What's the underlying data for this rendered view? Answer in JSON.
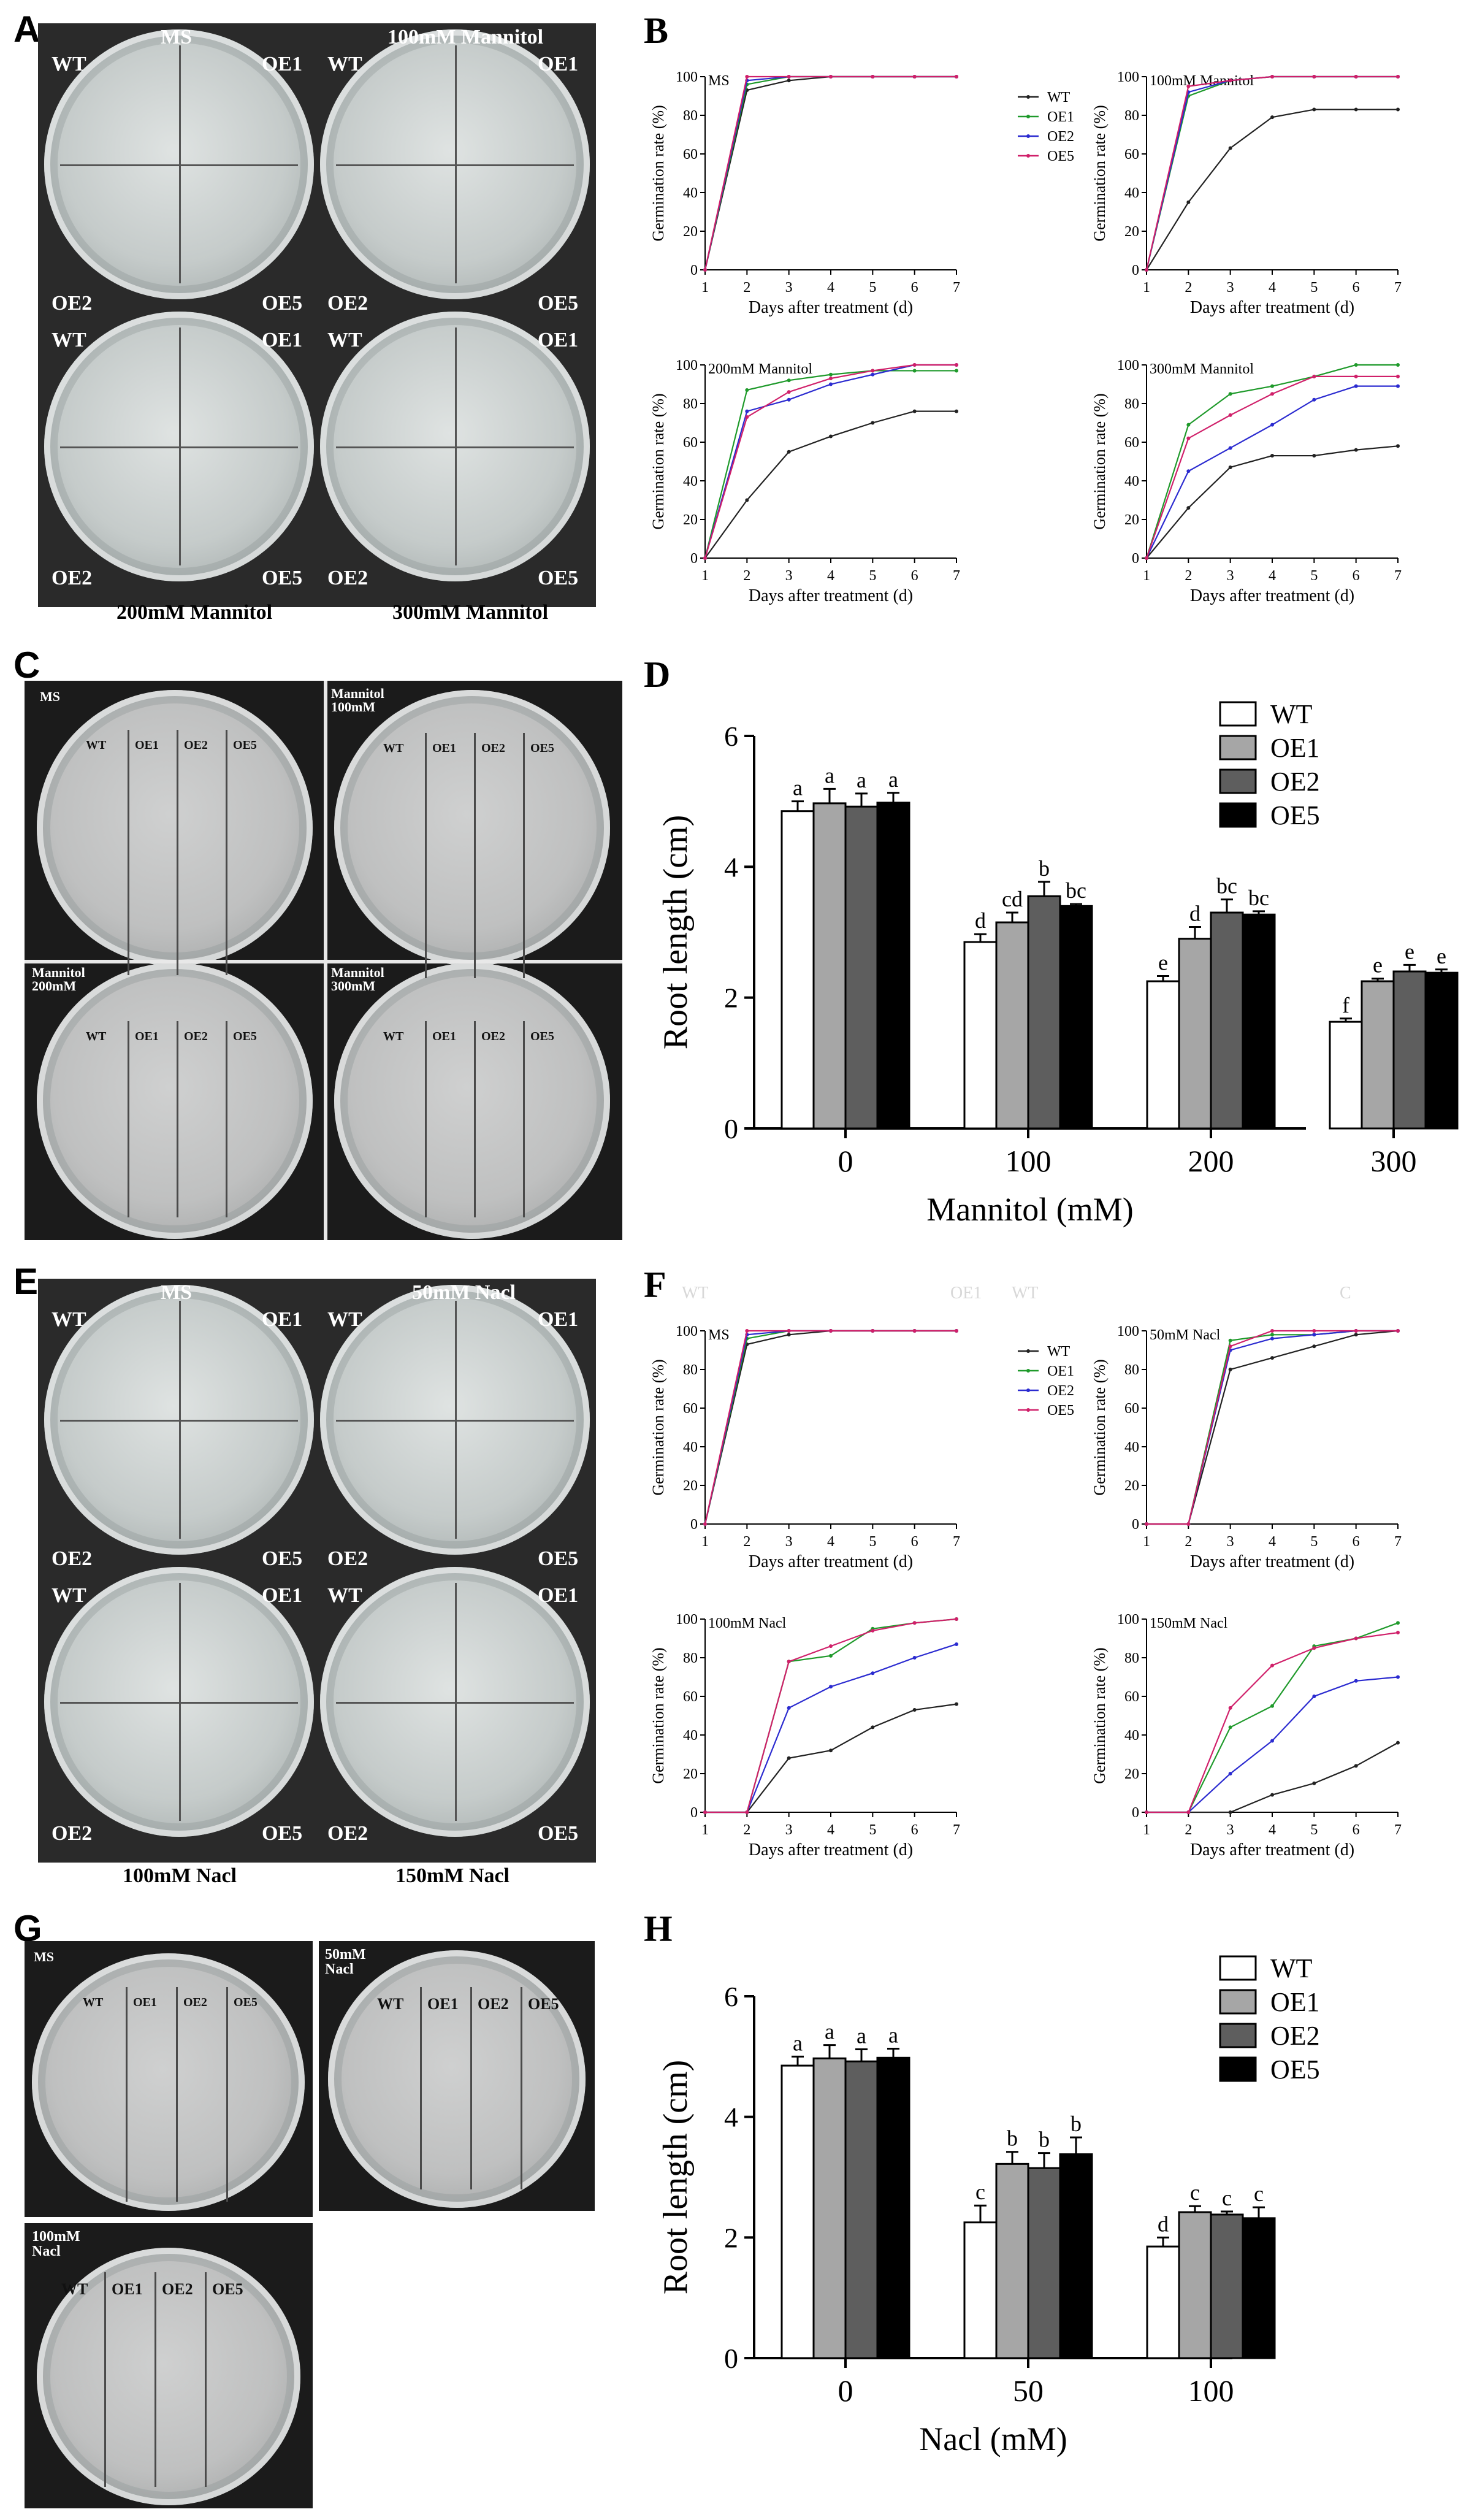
{
  "panels": {
    "A": {
      "label": "A",
      "top_left": "MS",
      "top_right": "100mM Mannitol",
      "bottom_left": "200mM Mannitol",
      "bottom_right": "300mM Mannitol",
      "q": [
        "WT",
        "OE1",
        "OE2",
        "OE5"
      ]
    },
    "C": {
      "label": "C",
      "plates": [
        "MS",
        "Mannitol\n100mM",
        "Mannitol\n200mM",
        "Mannitol\n300mM"
      ],
      "lanes": [
        "WT",
        "OE1",
        "OE2",
        "OE5"
      ]
    },
    "E": {
      "label": "E",
      "top_left": "MS",
      "top_right": "50mM Nacl",
      "bottom_left": "100mM Nacl",
      "bottom_right": "150mM Nacl",
      "q": [
        "WT",
        "OE1",
        "OE2",
        "OE5"
      ]
    },
    "G": {
      "label": "G",
      "plates": [
        "MS",
        "50mM\nNacl",
        "100mM\nNacl"
      ],
      "lanes": [
        "WT",
        "OE1",
        "OE2",
        "OE5"
      ]
    },
    "F_extra": {
      "t1": "WT",
      "t2": "OE1",
      "t3": "WT",
      "t4": "C"
    }
  },
  "chart_data": [
    {
      "id": "B",
      "label": "B",
      "type": "line",
      "layout": "2x2",
      "xlabel": "Days after treatment (d)",
      "ylabel": "Germination rate (%)",
      "xlim": [
        1,
        7
      ],
      "ylim": [
        0,
        100
      ],
      "xticks": [
        1,
        2,
        3,
        4,
        5,
        6,
        7
      ],
      "yticks": [
        0,
        20,
        40,
        60,
        80,
        100
      ],
      "legend": [
        "WT",
        "OE1",
        "OE2",
        "OE5"
      ],
      "colors": {
        "WT": "#222222",
        "OE1": "#1f9a2b",
        "OE2": "#2b2bd0",
        "OE5": "#d0206a"
      },
      "subplots": [
        {
          "title": "MS",
          "x": [
            1,
            2,
            3,
            4,
            5,
            6,
            7
          ],
          "series": [
            {
              "name": "WT",
              "values": [
                0,
                93,
                98,
                100,
                100,
                100,
                100
              ]
            },
            {
              "name": "OE1",
              "values": [
                0,
                96,
                100,
                100,
                100,
                100,
                100
              ]
            },
            {
              "name": "OE2",
              "values": [
                0,
                98,
                100,
                100,
                100,
                100,
                100
              ]
            },
            {
              "name": "OE5",
              "values": [
                0,
                100,
                100,
                100,
                100,
                100,
                100
              ]
            }
          ]
        },
        {
          "title": "100mM Mannitol",
          "x": [
            1,
            2,
            3,
            4,
            5,
            6,
            7
          ],
          "series": [
            {
              "name": "WT",
              "values": [
                0,
                35,
                63,
                79,
                83,
                83,
                83
              ]
            },
            {
              "name": "OE1",
              "values": [
                0,
                90,
                98,
                100,
                100,
                100,
                100
              ]
            },
            {
              "name": "OE2",
              "values": [
                0,
                92,
                98,
                100,
                100,
                100,
                100
              ]
            },
            {
              "name": "OE5",
              "values": [
                0,
                95,
                98,
                100,
                100,
                100,
                100
              ]
            }
          ]
        },
        {
          "title": "200mM Mannitol",
          "x": [
            1,
            2,
            3,
            4,
            5,
            6,
            7
          ],
          "series": [
            {
              "name": "WT",
              "values": [
                0,
                30,
                55,
                63,
                70,
                76,
                76
              ]
            },
            {
              "name": "OE1",
              "values": [
                0,
                87,
                92,
                95,
                97,
                97,
                97
              ]
            },
            {
              "name": "OE2",
              "values": [
                0,
                76,
                82,
                90,
                95,
                100,
                100
              ]
            },
            {
              "name": "OE5",
              "values": [
                0,
                73,
                86,
                93,
                97,
                100,
                100
              ]
            }
          ]
        },
        {
          "title": "300mM Mannitol",
          "x": [
            1,
            2,
            3,
            4,
            5,
            6,
            7
          ],
          "series": [
            {
              "name": "WT",
              "values": [
                0,
                26,
                47,
                53,
                53,
                56,
                58
              ]
            },
            {
              "name": "OE1",
              "values": [
                0,
                69,
                85,
                89,
                94,
                100,
                100
              ]
            },
            {
              "name": "OE2",
              "values": [
                0,
                45,
                57,
                69,
                82,
                89,
                89
              ]
            },
            {
              "name": "OE5",
              "values": [
                0,
                62,
                74,
                85,
                94,
                94,
                94
              ]
            }
          ]
        }
      ]
    },
    {
      "id": "D",
      "label": "D",
      "type": "bar",
      "xlabel": "Mannitol (mM)",
      "ylabel": "Root length (cm)",
      "categories": [
        "0",
        "100",
        "200",
        "300"
      ],
      "ylim": [
        0,
        6
      ],
      "yticks": [
        0,
        2,
        4,
        6
      ],
      "legend": [
        "WT",
        "OE1",
        "OE2",
        "OE5"
      ],
      "fills": {
        "WT": "#ffffff",
        "OE1": "#a6a6a6",
        "OE2": "#5e5e5e",
        "OE5": "#000000"
      },
      "series": [
        {
          "name": "WT",
          "values": [
            4.85,
            2.85,
            2.25,
            1.63
          ],
          "errors": [
            0.15,
            0.12,
            0.08,
            0.05
          ],
          "letters": [
            "a",
            "d",
            "e",
            "f"
          ]
        },
        {
          "name": "OE1",
          "values": [
            4.97,
            3.15,
            2.9,
            2.25
          ],
          "errors": [
            0.22,
            0.15,
            0.18,
            0.04
          ],
          "letters": [
            "a",
            "cd",
            "d",
            "e"
          ]
        },
        {
          "name": "OE2",
          "values": [
            4.92,
            3.55,
            3.3,
            2.4
          ],
          "errors": [
            0.2,
            0.22,
            0.2,
            0.1
          ],
          "letters": [
            "a",
            "b",
            "bc",
            "e"
          ]
        },
        {
          "name": "OE5",
          "values": [
            4.98,
            3.4,
            3.27,
            2.38
          ],
          "errors": [
            0.15,
            0.03,
            0.05,
            0.05
          ],
          "letters": [
            "a",
            "bc",
            "bc",
            "e"
          ]
        }
      ]
    },
    {
      "id": "F",
      "label": "F",
      "type": "line",
      "layout": "2x2",
      "xlabel": "Days after treatment (d)",
      "ylabel": "Germination rate (%)",
      "xlim": [
        1,
        7
      ],
      "ylim": [
        0,
        100
      ],
      "xticks": [
        1,
        2,
        3,
        4,
        5,
        6,
        7
      ],
      "yticks": [
        0,
        20,
        40,
        60,
        80,
        100
      ],
      "legend": [
        "WT",
        "OE1",
        "OE2",
        "OE5"
      ],
      "colors": {
        "WT": "#222222",
        "OE1": "#1f9a2b",
        "OE2": "#2b2bd0",
        "OE5": "#d0206a"
      },
      "subplots": [
        {
          "title": "MS",
          "x": [
            1,
            2,
            3,
            4,
            5,
            6,
            7
          ],
          "series": [
            {
              "name": "WT",
              "values": [
                0,
                93,
                98,
                100,
                100,
                100,
                100
              ]
            },
            {
              "name": "OE1",
              "values": [
                0,
                96,
                100,
                100,
                100,
                100,
                100
              ]
            },
            {
              "name": "OE2",
              "values": [
                0,
                98,
                100,
                100,
                100,
                100,
                100
              ]
            },
            {
              "name": "OE5",
              "values": [
                0,
                100,
                100,
                100,
                100,
                100,
                100
              ]
            }
          ]
        },
        {
          "title": "50mM Nacl",
          "x": [
            1,
            2,
            3,
            4,
            5,
            6,
            7
          ],
          "series": [
            {
              "name": "WT",
              "values": [
                0,
                0,
                80,
                86,
                92,
                98,
                100
              ]
            },
            {
              "name": "OE1",
              "values": [
                0,
                0,
                95,
                98,
                98,
                100,
                100
              ]
            },
            {
              "name": "OE2",
              "values": [
                0,
                0,
                90,
                96,
                98,
                100,
                100
              ]
            },
            {
              "name": "OE5",
              "values": [
                0,
                0,
                92,
                100,
                100,
                100,
                100
              ]
            }
          ]
        },
        {
          "title": "100mM Nacl",
          "x": [
            1,
            2,
            3,
            4,
            5,
            6,
            7
          ],
          "series": [
            {
              "name": "WT",
              "values": [
                0,
                0,
                28,
                32,
                44,
                53,
                56
              ]
            },
            {
              "name": "OE1",
              "values": [
                0,
                0,
                78,
                81,
                95,
                98,
                100
              ]
            },
            {
              "name": "OE2",
              "values": [
                0,
                0,
                54,
                65,
                72,
                80,
                87
              ]
            },
            {
              "name": "OE5",
              "values": [
                0,
                0,
                78,
                86,
                94,
                98,
                100
              ]
            }
          ]
        },
        {
          "title": "150mM Nacl",
          "x": [
            1,
            2,
            3,
            4,
            5,
            6,
            7
          ],
          "series": [
            {
              "name": "WT",
              "values": [
                0,
                0,
                0,
                9,
                15,
                24,
                36
              ]
            },
            {
              "name": "OE1",
              "values": [
                0,
                0,
                44,
                55,
                86,
                90,
                98
              ]
            },
            {
              "name": "OE2",
              "values": [
                0,
                0,
                20,
                37,
                60,
                68,
                70
              ]
            },
            {
              "name": "OE5",
              "values": [
                0,
                0,
                54,
                76,
                85,
                90,
                93
              ]
            }
          ]
        }
      ]
    },
    {
      "id": "H",
      "label": "H",
      "type": "bar",
      "xlabel": "Nacl (mM)",
      "ylabel": "Root length (cm)",
      "categories": [
        "0",
        "50",
        "100"
      ],
      "ylim": [
        0,
        6
      ],
      "yticks": [
        0,
        2,
        4,
        6
      ],
      "legend": [
        "WT",
        "OE1",
        "OE2",
        "OE5"
      ],
      "fills": {
        "WT": "#ffffff",
        "OE1": "#a6a6a6",
        "OE2": "#5e5e5e",
        "OE5": "#000000"
      },
      "series": [
        {
          "name": "WT",
          "values": [
            4.85,
            2.25,
            1.85
          ],
          "errors": [
            0.15,
            0.28,
            0.15
          ],
          "letters": [
            "a",
            "c",
            "d"
          ]
        },
        {
          "name": "OE1",
          "values": [
            4.97,
            3.22,
            2.42
          ],
          "errors": [
            0.22,
            0.2,
            0.1
          ],
          "letters": [
            "a",
            "b",
            "c"
          ]
        },
        {
          "name": "OE2",
          "values": [
            4.92,
            3.15,
            2.38
          ],
          "errors": [
            0.2,
            0.25,
            0.05
          ],
          "letters": [
            "a",
            "b",
            "c"
          ]
        },
        {
          "name": "OE5",
          "values": [
            4.98,
            3.38,
            2.32
          ],
          "errors": [
            0.15,
            0.28,
            0.18
          ],
          "letters": [
            "a",
            "b",
            "c"
          ]
        }
      ]
    }
  ]
}
